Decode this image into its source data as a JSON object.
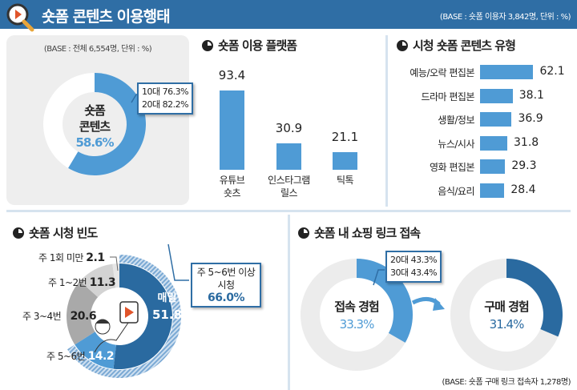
{
  "header": {
    "title": "숏폼 콘텐츠 이용행태",
    "base": "(BASE : 숏폼 이용자 3,842명, 단위 : %)",
    "icon": "magnifier-play-icon"
  },
  "colors": {
    "header": "#2f6ea5",
    "light_blue": "#4f9bd5",
    "dark_blue": "#2a6aa0",
    "gray": "#a9a9a9",
    "light_gray": "#d3d3d3",
    "track": "#ececec"
  },
  "chart_data": [
    {
      "type": "pie",
      "title": "",
      "base": "(BASE : 전체 6,554명, 단위 : %)",
      "center_label": [
        "숏폼",
        "콘텐츠"
      ],
      "value": 58.6,
      "value_label": "58.6%",
      "callout": [
        "10대 76.3%",
        "20대 82.2%"
      ]
    },
    {
      "type": "bar",
      "title": "숏폼 이용 플랫폼",
      "categories": [
        [
          "유튜브",
          "숏츠"
        ],
        [
          "인스타그램",
          "릴스"
        ],
        [
          "틱톡"
        ]
      ],
      "values": [
        93.4,
        30.9,
        21.1
      ],
      "value_labels": [
        "93.4",
        "30.9",
        "21.1"
      ]
    },
    {
      "type": "bar",
      "orientation": "horizontal",
      "title": "시청 숏폼 콘텐츠 유형",
      "categories": [
        "예능/오락 편집본",
        "드라마 편집본",
        "생활/정보",
        "뉴스/시사",
        "영화 편집본",
        "음식/요리"
      ],
      "values": [
        62.1,
        38.1,
        36.9,
        31.8,
        29.3,
        28.4
      ],
      "value_labels": [
        "62.1",
        "38.1",
        "36.9",
        "31.8",
        "29.3",
        "28.4"
      ]
    },
    {
      "type": "pie",
      "title": "숏폼 시청 빈도",
      "slices": [
        {
          "name": "매일",
          "value": 51.8,
          "label": "51.8"
        },
        {
          "name": "주 5~6번",
          "value": 14.2,
          "label": "14.2"
        },
        {
          "name": "주 3~4번",
          "value": 20.6,
          "label": "20.6"
        },
        {
          "name": "주 1~2번",
          "value": 11.3,
          "label": "11.3"
        },
        {
          "name": "주 1회 미만",
          "value": 2.1,
          "label": "2.1"
        }
      ],
      "callout": {
        "lines": [
          "주 5~6번 이상",
          "시청"
        ],
        "value": 66.0,
        "value_label": "66.0%"
      }
    },
    {
      "type": "pie",
      "title": "숏폼 내 쇼핑 링크 접속",
      "donuts": [
        {
          "label": "접속 경험",
          "value": 33.3,
          "value_label": "33.3%",
          "callout": [
            "20대 43.3%",
            "30대 43.4%"
          ]
        },
        {
          "label": "구매 경험",
          "value": 31.4,
          "value_label": "31.4%"
        }
      ],
      "base": "(BASE: 숏폼 구매 링크 접속자 1,278명)"
    }
  ]
}
